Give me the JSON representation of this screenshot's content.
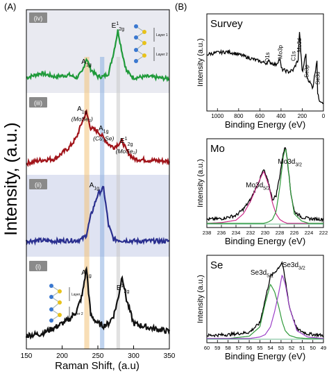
{
  "panels": {
    "A": "(A)",
    "B": "(B)"
  },
  "panel_a": {
    "ylabel": "Intensity, (a.u.)",
    "xlabel": "Raman Shift, (a.u)",
    "xticks": [
      "150",
      "200",
      "250",
      "300",
      "350"
    ],
    "xlim": [
      150,
      350
    ],
    "band_colors": {
      "orange": "#f3c27a",
      "blue": "#8aaee0",
      "grey": "#c9c9c9"
    },
    "subpanels": [
      {
        "tag": "(iv)",
        "color": "#1f9a3a",
        "bg": "#e9eaf1",
        "peak_labels": [
          {
            "main": "A",
            "sub": "1g",
            "x": 234
          },
          {
            "main": "E",
            "sup": "1",
            "sub": "2g",
            "x": 278
          }
        ],
        "inset": {
          "labels": [
            "Layer 1",
            "Layer 2"
          ]
        }
      },
      {
        "tag": "(iii)",
        "color": "#a1141a",
        "bg": "#ffffff",
        "peak_labels": [
          {
            "main": "A",
            "sub": "1g",
            "note": "(MoSe₂)",
            "x": 228
          },
          {
            "main": "A",
            "sub": "1g",
            "note": "(Cu₂Se)",
            "x": 258
          },
          {
            "main": "E",
            "sup": "1",
            "sub": "2g",
            "note": "(MoSe₂)",
            "x": 290
          }
        ]
      },
      {
        "tag": "(ii)",
        "color": "#2a2f8f",
        "bg": "#dfe3f2",
        "peak_labels": [
          {
            "main": "A",
            "sub": "1g",
            "x": 245
          }
        ]
      },
      {
        "tag": "(i)",
        "color": "#111111",
        "bg": "#ffffff",
        "peak_labels": [
          {
            "main": "A",
            "sub": "1g",
            "x": 234
          },
          {
            "main": "E",
            "sup": "1",
            "sub": "2g",
            "x": 285
          }
        ],
        "inset": {
          "labels": [
            "Layer 1",
            "Layer 2"
          ]
        }
      }
    ]
  },
  "chart_data": [
    {
      "type": "line",
      "title": "",
      "xlabel": "Raman Shift, (a.u)",
      "ylabel": "Intensity, (a.u.)",
      "xlim": [
        150,
        350
      ],
      "x": [
        150,
        170,
        190,
        210,
        220,
        228,
        234,
        240,
        250,
        258,
        265,
        272,
        278,
        284,
        290,
        300,
        320,
        350
      ],
      "series": [
        {
          "name": "(iv)",
          "color": "#1f9a3a",
          "values": [
            0.1,
            0.18,
            0.12,
            0.15,
            0.1,
            0.2,
            0.45,
            0.25,
            0.12,
            0.12,
            0.18,
            0.55,
            0.95,
            0.55,
            0.22,
            0.1,
            0.12,
            0.08
          ]
        },
        {
          "name": "(iii)",
          "color": "#a1141a",
          "values": [
            0.05,
            0.1,
            0.12,
            0.3,
            0.45,
            0.7,
            0.85,
            0.6,
            0.55,
            0.45,
            0.35,
            0.3,
            0.35,
            0.4,
            0.25,
            0.12,
            0.1,
            0.08
          ]
        },
        {
          "name": "(ii)",
          "color": "#2a2f8f",
          "values": [
            0.05,
            0.06,
            0.05,
            0.06,
            0.06,
            0.08,
            0.15,
            0.45,
            0.8,
            0.9,
            0.3,
            0.08,
            0.07,
            0.06,
            0.06,
            0.05,
            0.05,
            0.05
          ]
        },
        {
          "name": "(i)",
          "color": "#111111",
          "values": [
            0.1,
            0.12,
            0.2,
            0.3,
            0.4,
            0.6,
            0.95,
            0.35,
            0.25,
            0.22,
            0.25,
            0.35,
            0.55,
            0.85,
            0.55,
            0.25,
            0.2,
            0.15
          ]
        }
      ]
    },
    {
      "type": "line",
      "title": "Survey",
      "xlabel": "Binding Energy (eV)",
      "ylabel": "Intensity (a.u.)",
      "xlim": [
        1100,
        0
      ],
      "xticks": [
        "1000",
        "800",
        "600",
        "400",
        "200",
        "0"
      ],
      "annotations": [
        {
          "text": "O1s",
          "x": 530
        },
        {
          "text": "Mo3p",
          "x": 410
        },
        {
          "text": "C1s",
          "x": 285
        },
        {
          "text": "Mo3d",
          "x": 230
        },
        {
          "text": "Se3p",
          "x": 162
        },
        {
          "text": "Se3d",
          "x": 55
        }
      ],
      "x": [
        1100,
        1000,
        900,
        800,
        700,
        600,
        540,
        520,
        450,
        412,
        395,
        330,
        285,
        235,
        228,
        200,
        165,
        160,
        100,
        60,
        55,
        40,
        0
      ],
      "values": [
        0.6,
        0.62,
        0.63,
        0.6,
        0.56,
        0.52,
        0.5,
        0.52,
        0.48,
        0.55,
        0.43,
        0.4,
        0.42,
        0.55,
        0.9,
        0.38,
        0.62,
        0.35,
        0.22,
        0.55,
        0.15,
        0.08,
        0.05
      ]
    },
    {
      "type": "line",
      "title": "Mo",
      "xlabel": "Binding Energy (eV)",
      "ylabel": "Intensity (a.u.)",
      "xlim": [
        238,
        222
      ],
      "xticks": [
        "238",
        "236",
        "234",
        "232",
        "230",
        "228",
        "226",
        "224",
        "222"
      ],
      "annotations": [
        {
          "text": "Mo3d",
          "sub": "5/2",
          "x": 231
        },
        {
          "text": "Mo3d",
          "sub": "3/2",
          "x": 226.5
        }
      ],
      "x": [
        238,
        236,
        234,
        233,
        232,
        231,
        230.2,
        229.5,
        229,
        228.5,
        228,
        227.5,
        227.2,
        227,
        226.5,
        226,
        225,
        224,
        222
      ],
      "series": [
        {
          "name": "data",
          "color": "#000000",
          "values": [
            0.05,
            0.06,
            0.1,
            0.18,
            0.3,
            0.5,
            0.68,
            0.5,
            0.3,
            0.35,
            0.6,
            0.9,
            0.97,
            0.85,
            0.4,
            0.15,
            0.08,
            0.06,
            0.05
          ]
        },
        {
          "name": "Mo3d5/2",
          "color": "#cc2b8a",
          "values": [
            0.0,
            0.01,
            0.04,
            0.12,
            0.28,
            0.5,
            0.66,
            0.48,
            0.26,
            0.12,
            0.05,
            0.02,
            0.01,
            0.0,
            0.0,
            0.0,
            0.0,
            0.0,
            0.0
          ]
        },
        {
          "name": "Mo3d3/2",
          "color": "#2f9a3a",
          "values": [
            0.0,
            0.0,
            0.0,
            0.0,
            0.0,
            0.0,
            0.0,
            0.02,
            0.05,
            0.15,
            0.45,
            0.85,
            0.95,
            0.85,
            0.4,
            0.12,
            0.03,
            0.0,
            0.0
          ]
        }
      ]
    },
    {
      "type": "line",
      "title": "Se",
      "xlabel": "Binding Energy (eV)",
      "ylabel": "Intensity (a.u.)",
      "xlim": [
        60,
        49
      ],
      "xticks": [
        "60",
        "59",
        "58",
        "57",
        "56",
        "55",
        "54",
        "53",
        "52",
        "51",
        "50",
        "49"
      ],
      "annotations": [
        {
          "text": "Se3d",
          "sub": "5/2",
          "x": 54.5
        },
        {
          "text": "Se3d",
          "sub": "3/2",
          "x": 52.2
        }
      ],
      "x": [
        60,
        58,
        56,
        55,
        54.5,
        54,
        53.6,
        53.2,
        52.9,
        52.6,
        52.2,
        51.5,
        50.5,
        49
      ],
      "series": [
        {
          "name": "data",
          "color": "#000000",
          "values": [
            0.04,
            0.05,
            0.08,
            0.2,
            0.5,
            0.8,
            0.85,
            0.92,
            0.98,
            0.75,
            0.4,
            0.12,
            0.06,
            0.04
          ]
        },
        {
          "name": "Se3d5/2",
          "color": "#2f9a3a",
          "values": [
            0.0,
            0.0,
            0.03,
            0.15,
            0.45,
            0.7,
            0.6,
            0.4,
            0.22,
            0.1,
            0.04,
            0.01,
            0.0,
            0.0
          ]
        },
        {
          "name": "Se3d3/2",
          "color": "#9b3fc7",
          "values": [
            0.0,
            0.0,
            0.0,
            0.02,
            0.05,
            0.15,
            0.35,
            0.6,
            0.82,
            0.7,
            0.4,
            0.1,
            0.02,
            0.0
          ]
        }
      ]
    }
  ]
}
